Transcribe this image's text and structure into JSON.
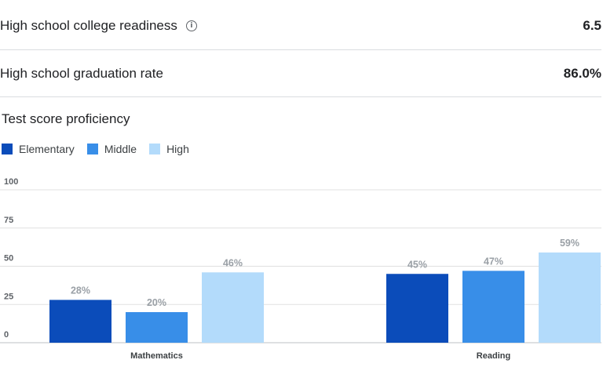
{
  "stats": [
    {
      "label": "High school college readiness",
      "value": "6.5",
      "has_info": true
    },
    {
      "label": "High school graduation rate",
      "value": "86.0%",
      "has_info": false
    }
  ],
  "info_icon": "info-icon",
  "section_title": "Test score proficiency",
  "chart_data": {
    "type": "bar",
    "title": "",
    "categories": [
      "Mathematics",
      "Reading"
    ],
    "series": [
      {
        "name": "Elementary",
        "color": "#0b4cba",
        "values": [
          28,
          45
        ]
      },
      {
        "name": "Middle",
        "color": "#388ee8",
        "values": [
          20,
          47
        ]
      },
      {
        "name": "High",
        "color": "#b3dbfb",
        "values": [
          46,
          59
        ]
      }
    ],
    "ylim": [
      0,
      100
    ],
    "yticks": [
      0,
      25,
      50,
      75,
      100
    ],
    "value_suffix": "%",
    "grid": true,
    "legend": "top-left"
  }
}
